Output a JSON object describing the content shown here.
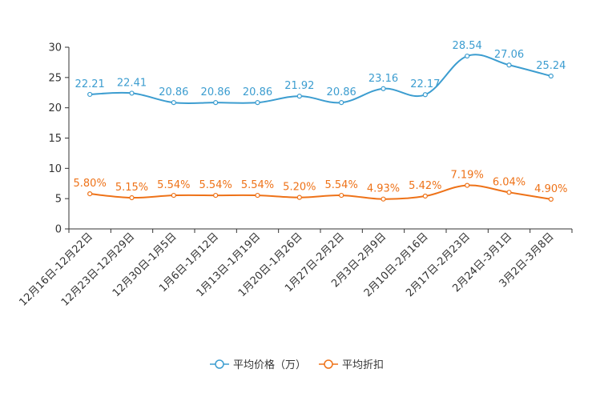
{
  "chart_data": {
    "type": "line",
    "title": "",
    "xlabel": "",
    "ylabel": "",
    "ylim": [
      0,
      30
    ],
    "yticks": [
      0,
      5,
      10,
      15,
      20,
      25,
      30
    ],
    "grid": false,
    "legend_position": "bottom-center",
    "categories": [
      "12月16日-12月22日",
      "12月23日-12月29日",
      "12月30日-1月5日",
      "1月6日-1月12日",
      "1月13日-1月19日",
      "1月20日-1月26日",
      "1月27日-2月2日",
      "2月3日-2月9日",
      "2月10日-2月16日",
      "2月17日-2月23日",
      "2月24日-3月1日",
      "3月2日-3月8日"
    ],
    "series": [
      {
        "name": "平均价格（万）",
        "color": "#3c9dd0",
        "values": [
          22.21,
          22.41,
          20.86,
          20.86,
          20.86,
          21.92,
          20.86,
          23.16,
          22.17,
          28.54,
          27.06,
          25.24
        ],
        "labels": [
          "22.21",
          "22.41",
          "20.86",
          "20.86",
          "20.86",
          "21.92",
          "20.86",
          "23.16",
          "22.17",
          "28.54",
          "27.06",
          "25.24"
        ]
      },
      {
        "name": "平均折扣",
        "color": "#ee7218",
        "values": [
          5.8,
          5.15,
          5.54,
          5.54,
          5.54,
          5.2,
          5.54,
          4.93,
          5.42,
          7.19,
          6.04,
          4.9
        ],
        "labels": [
          "5.80%",
          "5.15%",
          "5.54%",
          "5.54%",
          "5.54%",
          "5.20%",
          "5.54%",
          "4.93%",
          "5.42%",
          "7.19%",
          "6.04%",
          "4.90%"
        ]
      }
    ]
  }
}
